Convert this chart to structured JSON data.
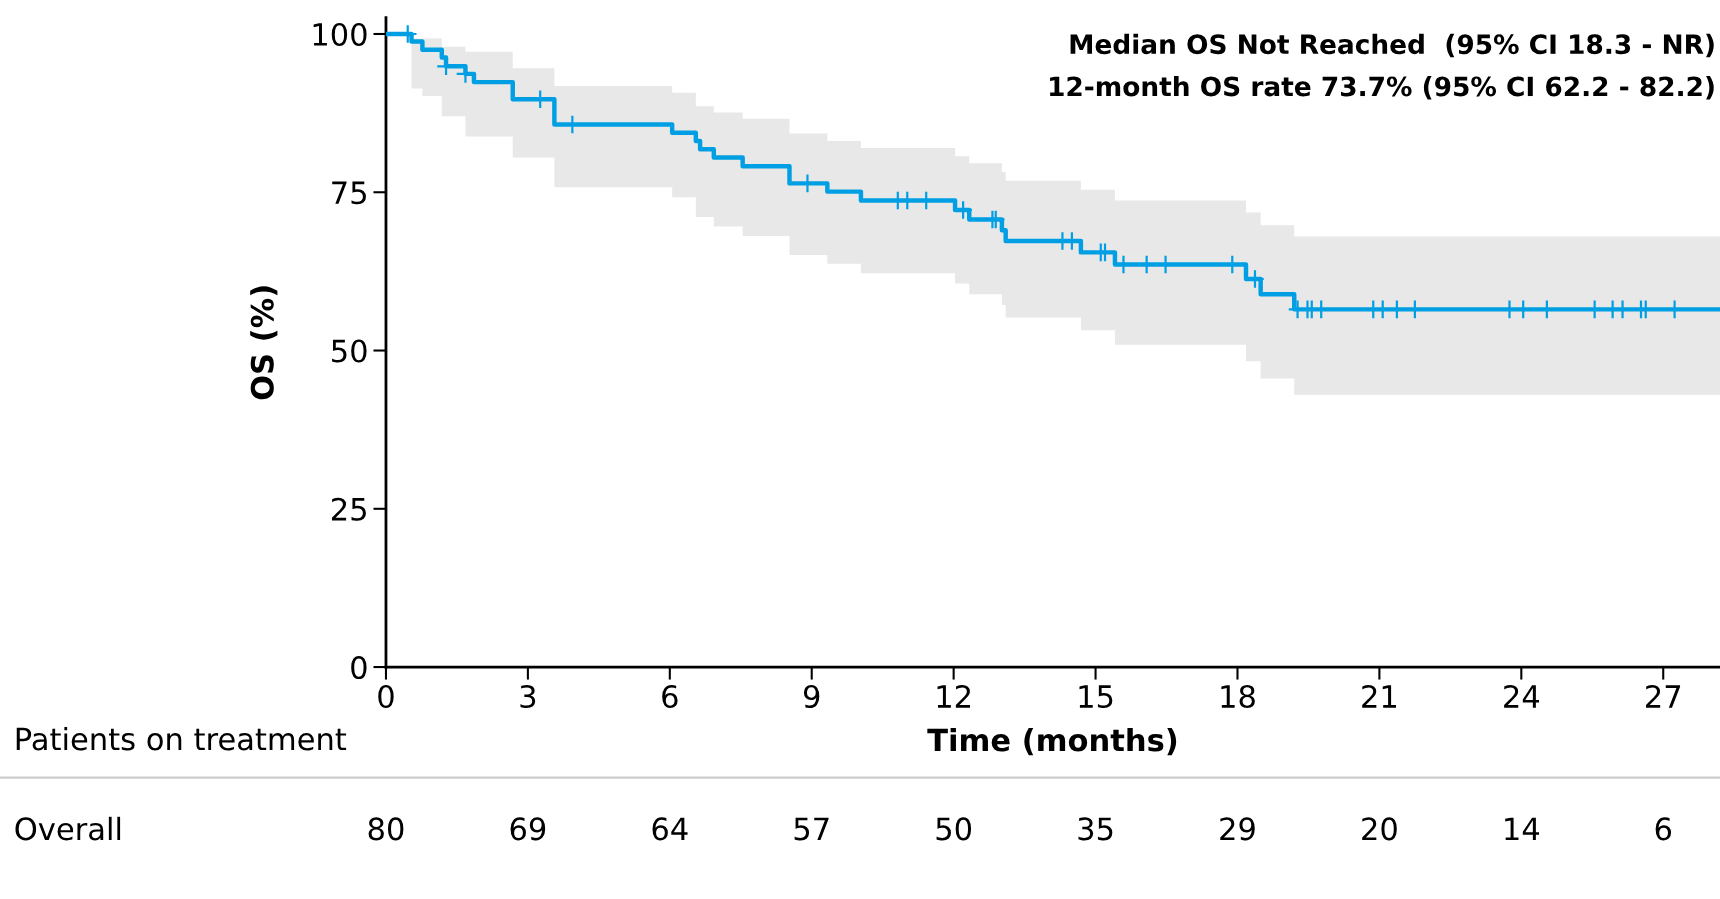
{
  "chart_data": [
    {
      "type": "step",
      "xlabel": "Time (months)",
      "ylabel": "OS (%)",
      "xlim": [
        0,
        28.2
      ],
      "xticks": [
        0,
        3,
        6,
        9,
        12,
        15,
        18,
        21,
        24,
        27
      ],
      "ylim": [
        0,
        102.6
      ],
      "yticks": [
        0,
        25,
        50,
        75,
        100
      ],
      "grid": false,
      "legend": false,
      "annotations": [
        "Median OS Not Reached  (95% CI 18.3 - NR)",
        "12-month OS rate 73.7% (95% CI 62.2 - 82.2)"
      ],
      "series": [
        {
          "color": "#009fe3",
          "marker": "none",
          "x": [
            0,
            0.54,
            0.77,
            1.18,
            1.27,
            1.68,
            1.86,
            2.68,
            3.56,
            6.05,
            6.55,
            6.64,
            6.93,
            7.54,
            8.53,
            9.33,
            10.04,
            12.03,
            12.33,
            13.02,
            13.1,
            14.69,
            15.41,
            18.18,
            18.49,
            19.2,
            28.2
          ],
          "values": [
            100,
            98.8,
            97.5,
            96.3,
            94.9,
            93.7,
            92.4,
            89.7,
            85.7,
            84.4,
            83.1,
            81.8,
            80.5,
            79.1,
            76.4,
            75.1,
            73.7,
            72.2,
            70.7,
            69.0,
            67.3,
            65.5,
            63.6,
            61.3,
            58.9,
            56.5,
            56.5
          ],
          "lower": [
            null,
            91.4,
            90.2,
            87.0,
            87.0,
            83.8,
            83.8,
            80.5,
            75.8,
            74.2,
            71.1,
            71.1,
            69.6,
            68.1,
            65.1,
            63.7,
            62.2,
            60.6,
            58.9,
            57.2,
            55.2,
            53.2,
            50.9,
            48.3,
            45.6,
            43.0,
            43.0
          ],
          "upper": [
            null,
            99.3,
            99.3,
            98.0,
            98.0,
            97.2,
            97.2,
            94.6,
            91.8,
            90.7,
            88.6,
            88.6,
            87.6,
            86.6,
            84.3,
            83.1,
            82.0,
            80.7,
            79.6,
            78.2,
            76.8,
            75.4,
            73.7,
            71.8,
            69.8,
            68.0,
            68.0
          ]
        },
        {
          "type": "scatter",
          "color": "#009fe3",
          "marker": "cross",
          "x": [
            0.46,
            1.27,
            1.68,
            3.26,
            3.94,
            8.91,
            10.82,
            11.02,
            11.42,
            12.2,
            12.82,
            12.89,
            14.3,
            14.5,
            15.11,
            15.2,
            15.59,
            16.08,
            16.48,
            17.89,
            18.37,
            19.27,
            19.48,
            19.57,
            19.77,
            20.87,
            21.07,
            21.37,
            21.75,
            23.75,
            24.04,
            24.54,
            25.55,
            25.93,
            26.14,
            26.53,
            26.63,
            27.24
          ],
          "values": [
            100,
            94.9,
            93.7,
            89.7,
            85.7,
            76.4,
            73.7,
            73.7,
            73.7,
            72.2,
            70.7,
            70.7,
            67.3,
            67.3,
            65.5,
            65.5,
            63.6,
            63.6,
            63.6,
            63.6,
            61.3,
            56.5,
            56.5,
            56.5,
            56.5,
            56.5,
            56.5,
            56.5,
            56.5,
            56.5,
            56.5,
            56.5,
            56.5,
            56.5,
            56.5,
            56.5,
            56.5,
            56.5
          ]
        }
      ]
    },
    {
      "type": "other",
      "title": "Patients on treatment",
      "y_categories": [
        "Overall"
      ],
      "cell_labels": [
        [
          "80",
          "69",
          "64",
          "57",
          "50",
          "35",
          "29",
          "20",
          "14",
          "6"
        ]
      ]
    }
  ]
}
